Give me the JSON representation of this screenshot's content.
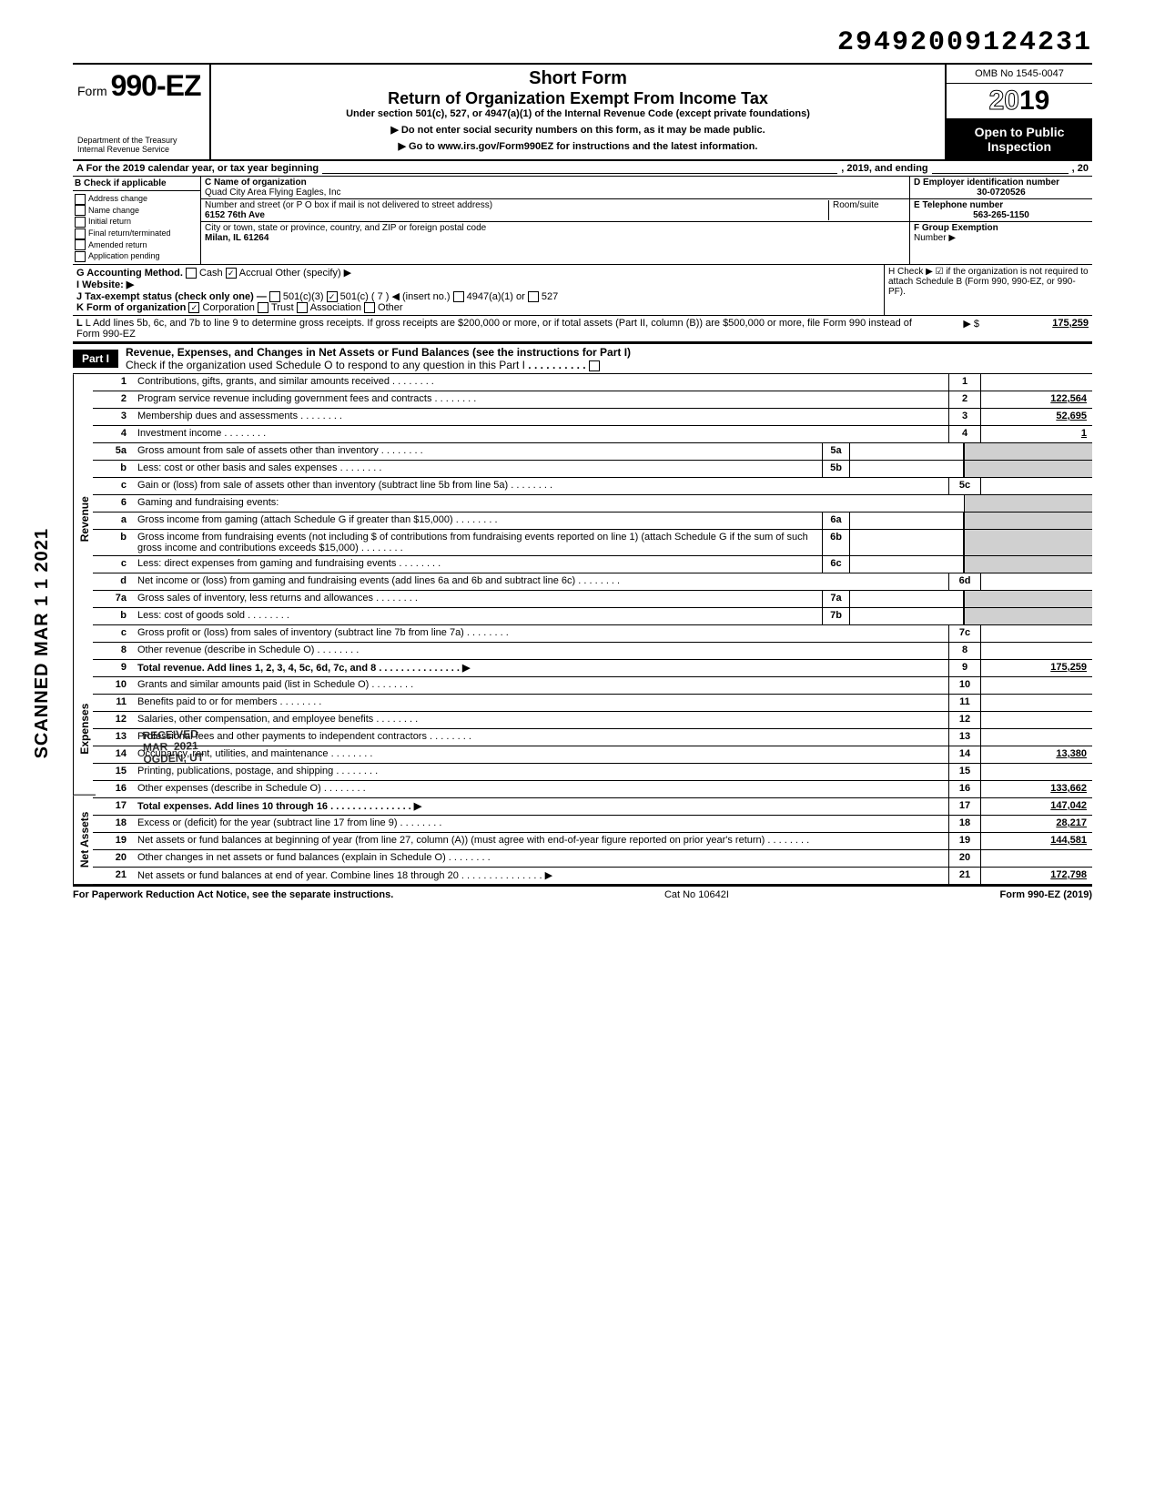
{
  "doc_number": "29492009124231",
  "form": {
    "prefix": "Form",
    "number": "990-EZ",
    "dept1": "Department of the Treasury",
    "dept2": "Internal Revenue Service"
  },
  "title": {
    "short": "Short Form",
    "main": "Return of Organization Exempt From Income Tax",
    "sub": "Under section 501(c), 527, or 4947(a)(1) of the Internal Revenue Code (except private foundations)",
    "note1": "▶ Do not enter social security numbers on this form, as it may be made public.",
    "note2": "▶ Go to www.irs.gov/Form990EZ for instructions and the latest information."
  },
  "rightHeader": {
    "omb": "OMB No 1545-0047",
    "year_outline": "20",
    "year_solid": "19",
    "open1": "Open to Public",
    "open2": "Inspection"
  },
  "lineA": {
    "prefix": "A  For the 2019 calendar year, or tax year beginning",
    "mid": ", 2019, and ending",
    "suffix": ", 20"
  },
  "sectionB": {
    "header": "B  Check if applicable",
    "items": [
      "Address change",
      "Name change",
      "Initial return",
      "Final return/terminated",
      "Amended return",
      "Application pending"
    ]
  },
  "sectionC": {
    "nameLabel": "C  Name of organization",
    "name": "Quad City Area Flying Eagles, Inc",
    "streetLabel": "Number and street (or P O  box if mail is not delivered to street address)",
    "roomLabel": "Room/suite",
    "street": "6152 76th Ave",
    "cityLabel": "City or town, state or province, country, and ZIP or foreign postal code",
    "city": "Milan, IL 61264"
  },
  "sectionD": {
    "einLabel": "D  Employer identification number",
    "ein": "30-0720526",
    "phoneLabel": "E  Telephone number",
    "phone": "563-265-1150",
    "groupLabel": "F  Group Exemption",
    "groupLabel2": "Number ▶"
  },
  "lineG": "G  Accounting Method.",
  "lineG_cash": "Cash",
  "lineG_accrual": "Accrual",
  "lineG_other": "Other (specify) ▶",
  "lineH": "H  Check ▶ ☑ if the organization is not required to attach Schedule B (Form 990, 990-EZ, or 990-PF).",
  "lineI": "I   Website: ▶",
  "lineJ": "J  Tax-exempt status (check only one) —",
  "lineJ_opts": [
    "501(c)(3)",
    "501(c) (  7  ) ◀ (insert no.)",
    "4947(a)(1) or",
    "527"
  ],
  "lineK": "K  Form of organization",
  "lineK_opts": [
    "Corporation",
    "Trust",
    "Association",
    "Other"
  ],
  "lineL": "L  Add lines 5b, 6c, and 7b to line 9 to determine gross receipts. If gross receipts are $200,000 or more, or if total assets (Part II, column (B)) are $500,000 or more, file Form 990 instead of Form 990-EZ",
  "lineL_arrow": "▶  $",
  "lineL_val": "175,259",
  "part1": {
    "label": "Part I",
    "title": "Revenue, Expenses, and Changes in Net Assets or Fund Balances (see the instructions for Part I)",
    "sub": "Check if the organization used Schedule O to respond to any question in this Part I"
  },
  "sideLabels": {
    "revenue": "Revenue",
    "expenses": "Expenses",
    "netassets": "Net Assets"
  },
  "stamp": "SCANNED MAR 1 1 2021",
  "received": "RECEIVED\nMAR 2021\nOGDEN, UT",
  "lines": [
    {
      "n": "1",
      "d": "Contributions, gifts, grants, and similar amounts received",
      "box": "1",
      "val": ""
    },
    {
      "n": "2",
      "d": "Program service revenue including government fees and contracts",
      "box": "2",
      "val": "122,564"
    },
    {
      "n": "3",
      "d": "Membership dues and assessments",
      "box": "3",
      "val": "52,695"
    },
    {
      "n": "4",
      "d": "Investment income",
      "box": "4",
      "val": "1"
    },
    {
      "n": "5a",
      "d": "Gross amount from sale of assets other than inventory",
      "mid": "5a"
    },
    {
      "n": "b",
      "d": "Less: cost or other basis and sales expenses",
      "mid": "5b"
    },
    {
      "n": "c",
      "d": "Gain or (loss) from sale of assets other than inventory (subtract line 5b from line 5a)",
      "box": "5c",
      "val": ""
    },
    {
      "n": "6",
      "d": "Gaming and fundraising events:"
    },
    {
      "n": "a",
      "d": "Gross income from gaming (attach Schedule G if greater than $15,000)",
      "mid": "6a"
    },
    {
      "n": "b",
      "d": "Gross income from fundraising events (not including  $                   of contributions from fundraising events reported on line 1) (attach Schedule G if the sum of such gross income and contributions exceeds $15,000)",
      "mid": "6b"
    },
    {
      "n": "c",
      "d": "Less: direct expenses from gaming and fundraising events",
      "mid": "6c"
    },
    {
      "n": "d",
      "d": "Net income or (loss) from gaming and fundraising events (add lines 6a and 6b and subtract line 6c)",
      "box": "6d",
      "val": ""
    },
    {
      "n": "7a",
      "d": "Gross sales of inventory, less returns and allowances",
      "mid": "7a"
    },
    {
      "n": "b",
      "d": "Less: cost of goods sold",
      "mid": "7b"
    },
    {
      "n": "c",
      "d": "Gross profit or (loss) from sales of inventory (subtract line 7b from line 7a)",
      "box": "7c",
      "val": ""
    },
    {
      "n": "8",
      "d": "Other revenue (describe in Schedule O)",
      "box": "8",
      "val": ""
    },
    {
      "n": "9",
      "d": "Total revenue. Add lines 1, 2, 3, 4, 5c, 6d, 7c, and 8",
      "box": "9",
      "val": "175,259",
      "arrow": true,
      "bold": true
    },
    {
      "n": "10",
      "d": "Grants and similar amounts paid (list in Schedule O)",
      "box": "10",
      "val": ""
    },
    {
      "n": "11",
      "d": "Benefits paid to or for members",
      "box": "11",
      "val": ""
    },
    {
      "n": "12",
      "d": "Salaries, other compensation, and employee benefits",
      "box": "12",
      "val": ""
    },
    {
      "n": "13",
      "d": "Professional fees and other payments to independent contractors",
      "box": "13",
      "val": ""
    },
    {
      "n": "14",
      "d": "Occupancy, rent, utilities, and maintenance",
      "box": "14",
      "val": "13,380"
    },
    {
      "n": "15",
      "d": "Printing, publications, postage, and shipping",
      "box": "15",
      "val": ""
    },
    {
      "n": "16",
      "d": "Other expenses (describe in Schedule O)",
      "box": "16",
      "val": "133,662"
    },
    {
      "n": "17",
      "d": "Total expenses. Add lines 10 through 16",
      "box": "17",
      "val": "147,042",
      "arrow": true,
      "bold": true
    },
    {
      "n": "18",
      "d": "Excess or (deficit) for the year (subtract line 17 from line 9)",
      "box": "18",
      "val": "28,217"
    },
    {
      "n": "19",
      "d": "Net assets or fund balances at beginning of year (from line 27, column (A)) (must agree with end-of-year figure reported on prior year's return)",
      "box": "19",
      "val": "144,581"
    },
    {
      "n": "20",
      "d": "Other changes in net assets or fund balances (explain in Schedule O)",
      "box": "20",
      "val": ""
    },
    {
      "n": "21",
      "d": "Net assets or fund balances at end of year. Combine lines 18 through 20",
      "box": "21",
      "val": "172,798",
      "arrow": true
    }
  ],
  "footer": {
    "left": "For Paperwork Reduction Act Notice, see the separate instructions.",
    "mid": "Cat No  10642I",
    "right": "Form 990-EZ (2019)"
  }
}
